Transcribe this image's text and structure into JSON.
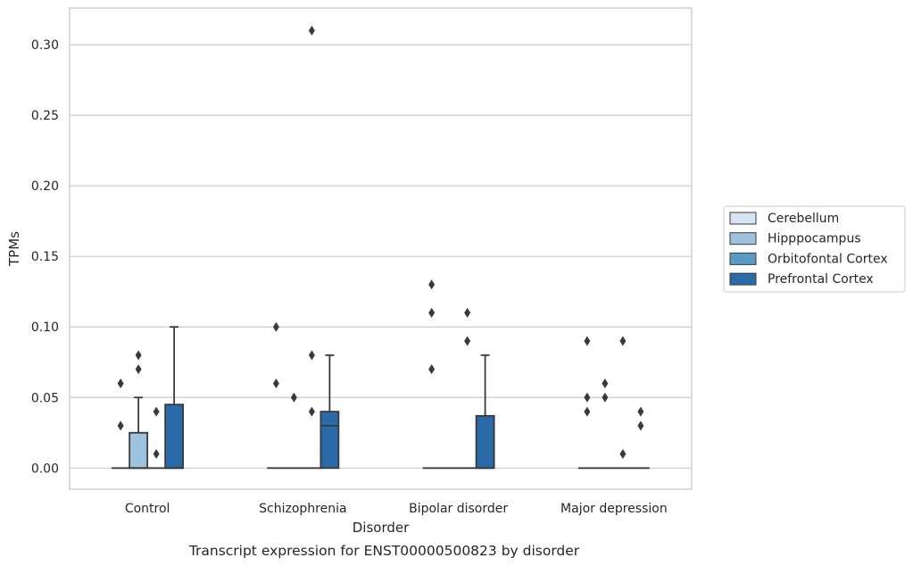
{
  "chart_data": {
    "type": "box",
    "caption": "Transcript expression for ENST00000500823 by disorder",
    "xlabel": "Disorder",
    "ylabel": "TPMs",
    "ylim": [
      -0.015,
      0.326
    ],
    "yticks": [
      0.0,
      0.05,
      0.1,
      0.15,
      0.2,
      0.25,
      0.3
    ],
    "ytick_labels": [
      "0.00",
      "0.05",
      "0.10",
      "0.15",
      "0.20",
      "0.25",
      "0.30"
    ],
    "grid": true,
    "legend_position": "right",
    "categories": [
      "Control",
      "Schizophrenia",
      "Bipolar disorder",
      "Major depression"
    ],
    "series": [
      {
        "name": "Cerebellum",
        "color": "#d6e5f3",
        "boxes": [
          {
            "q1": 0,
            "median": 0,
            "q3": 0,
            "whisker_low": 0,
            "whisker_high": 0,
            "outliers": [
              0.06,
              0.03
            ]
          },
          {
            "q1": 0,
            "median": 0,
            "q3": 0,
            "whisker_low": 0,
            "whisker_high": 0,
            "outliers": [
              0.1,
              0.06
            ]
          },
          {
            "q1": 0,
            "median": 0,
            "q3": 0,
            "whisker_low": 0,
            "whisker_high": 0,
            "outliers": [
              0.13,
              0.11,
              0.07
            ]
          },
          {
            "q1": 0,
            "median": 0,
            "q3": 0,
            "whisker_low": 0,
            "whisker_high": 0,
            "outliers": [
              0.09,
              0.05,
              0.04
            ]
          }
        ]
      },
      {
        "name": "Hipppocampus",
        "color": "#9dc3de",
        "boxes": [
          {
            "q1": 0,
            "median": 0,
            "q3": 0.025,
            "whisker_low": 0,
            "whisker_high": 0.05,
            "outliers": [
              0.08,
              0.07
            ]
          },
          {
            "q1": 0,
            "median": 0,
            "q3": 0,
            "whisker_low": 0,
            "whisker_high": 0,
            "outliers": [
              0.05
            ]
          },
          {
            "q1": 0,
            "median": 0,
            "q3": 0,
            "whisker_low": 0,
            "whisker_high": 0,
            "outliers": []
          },
          {
            "q1": 0,
            "median": 0,
            "q3": 0,
            "whisker_low": 0,
            "whisker_high": 0,
            "outliers": [
              0.06,
              0.05
            ]
          }
        ]
      },
      {
        "name": "Orbitofontal Cortex",
        "color": "#5899c6",
        "boxes": [
          {
            "q1": 0,
            "median": 0,
            "q3": 0,
            "whisker_low": 0,
            "whisker_high": 0,
            "outliers": [
              0.04,
              0.01
            ]
          },
          {
            "q1": 0,
            "median": 0,
            "q3": 0,
            "whisker_low": 0,
            "whisker_high": 0,
            "outliers": [
              0.31,
              0.08,
              0.04
            ]
          },
          {
            "q1": 0,
            "median": 0,
            "q3": 0,
            "whisker_low": 0,
            "whisker_high": 0,
            "outliers": [
              0.11,
              0.09
            ]
          },
          {
            "q1": 0,
            "median": 0,
            "q3": 0,
            "whisker_low": 0,
            "whisker_high": 0,
            "outliers": [
              0.09,
              0.01
            ]
          }
        ]
      },
      {
        "name": "Prefrontal Cortex",
        "color": "#2a6aa8",
        "boxes": [
          {
            "q1": 0,
            "median": 0,
            "q3": 0.045,
            "whisker_low": 0,
            "whisker_high": 0.1,
            "outliers": []
          },
          {
            "q1": 0,
            "median": 0.03,
            "q3": 0.04,
            "whisker_low": 0,
            "whisker_high": 0.08,
            "outliers": []
          },
          {
            "q1": 0,
            "median": 0,
            "q3": 0.037,
            "whisker_low": 0,
            "whisker_high": 0.08,
            "outliers": []
          },
          {
            "q1": 0,
            "median": 0,
            "q3": 0,
            "whisker_low": 0,
            "whisker_high": 0,
            "outliers": [
              0.04,
              0.03
            ]
          }
        ]
      }
    ]
  }
}
